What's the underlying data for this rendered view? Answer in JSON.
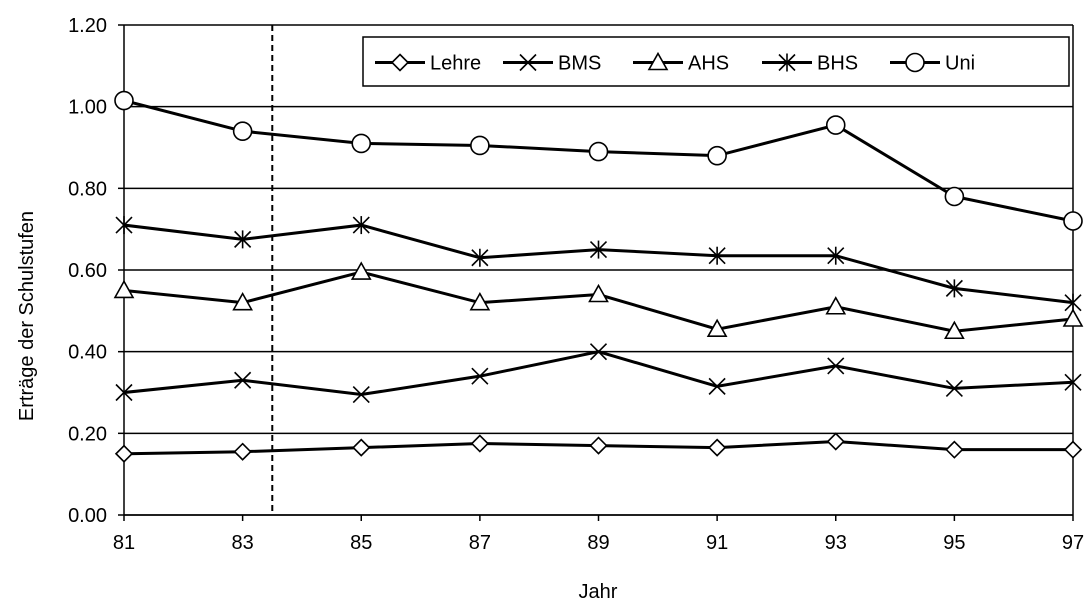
{
  "chart_data": {
    "type": "line",
    "title": "",
    "xlabel": "Jahr",
    "ylabel": "Erträge der Schulstufen",
    "x": [
      81,
      83,
      85,
      87,
      89,
      91,
      93,
      95,
      97
    ],
    "x_tick_labels": [
      "81",
      "83",
      "85",
      "87",
      "89",
      "91",
      "93",
      "95",
      "97"
    ],
    "xlim": [
      81,
      97
    ],
    "ylim": [
      0,
      1.2
    ],
    "y_ticks": [
      0,
      0.2,
      0.4,
      0.6,
      0.8,
      1.0,
      1.2
    ],
    "y_tick_labels": [
      "0.00",
      "0.20",
      "0.40",
      "0.60",
      "0.80",
      "1.00",
      "1.20"
    ],
    "grid": "horizontal",
    "legend_position": "top-right",
    "reference_line": {
      "x": 83.5,
      "style": "dashed"
    },
    "series": [
      {
        "name": "Lehre",
        "marker": "diamond",
        "values": [
          0.15,
          0.155,
          0.165,
          0.175,
          0.17,
          0.165,
          0.18,
          0.16,
          0.16
        ]
      },
      {
        "name": "BMS",
        "marker": "x",
        "values": [
          0.3,
          0.33,
          0.295,
          0.34,
          0.4,
          0.315,
          0.365,
          0.31,
          0.325
        ]
      },
      {
        "name": "AHS",
        "marker": "triangle",
        "values": [
          0.55,
          0.52,
          0.595,
          0.52,
          0.54,
          0.455,
          0.51,
          0.45,
          0.48
        ]
      },
      {
        "name": "BHS",
        "marker": "asterisk",
        "values": [
          0.71,
          0.675,
          0.71,
          0.63,
          0.65,
          0.635,
          0.635,
          0.555,
          0.52
        ]
      },
      {
        "name": "Uni",
        "marker": "circle",
        "values": [
          1.015,
          0.94,
          0.91,
          0.905,
          0.89,
          0.88,
          0.955,
          0.78,
          0.72
        ]
      }
    ]
  }
}
